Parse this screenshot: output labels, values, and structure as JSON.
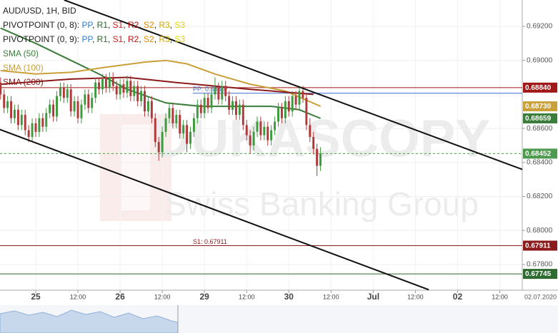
{
  "chart_data": {
    "type": "candlestick",
    "title": "AUD/USD, 1H, BID",
    "up_color": "#3f9a3f",
    "down_color": "#b03a3a",
    "x": [
      -10,
      -9,
      -8,
      -7,
      -6,
      -5,
      -4,
      -3,
      -2,
      -1,
      0,
      1,
      2,
      3,
      4,
      5,
      6,
      7,
      8,
      9,
      10,
      11,
      12,
      13,
      14,
      15,
      16,
      17,
      18,
      19,
      20,
      21,
      22,
      23,
      24,
      25,
      26,
      27,
      28,
      29,
      30,
      31,
      32,
      33,
      34,
      35,
      36,
      37,
      38,
      39,
      40,
      41,
      42,
      43,
      44,
      45,
      46,
      47,
      48,
      49,
      50,
      51,
      52,
      53,
      54,
      55,
      56,
      57,
      58,
      59,
      60,
      61,
      62,
      63,
      64,
      65,
      66,
      67,
      68,
      69,
      70,
      71,
      72,
      73,
      74,
      75,
      76,
      77,
      78,
      79,
      80,
      81
    ],
    "ohlc": [
      [
        0.6887,
        0.689,
        0.6877,
        0.688
      ],
      [
        0.688,
        0.6883,
        0.6869,
        0.6872
      ],
      [
        0.6872,
        0.6879,
        0.6869,
        0.6876
      ],
      [
        0.6876,
        0.6879,
        0.6863,
        0.6866
      ],
      [
        0.6866,
        0.6874,
        0.6863,
        0.6871
      ],
      [
        0.6871,
        0.6874,
        0.6859,
        0.6862
      ],
      [
        0.6862,
        0.6871,
        0.6859,
        0.6868
      ],
      [
        0.6868,
        0.6871,
        0.6856,
        0.6859
      ],
      [
        0.6859,
        0.6862,
        0.6852,
        0.6855
      ],
      [
        0.6855,
        0.6866,
        0.6852,
        0.6863
      ],
      [
        0.6863,
        0.6866,
        0.6855,
        0.6858
      ],
      [
        0.6858,
        0.6869,
        0.6855,
        0.6866
      ],
      [
        0.6866,
        0.6869,
        0.6858,
        0.6861
      ],
      [
        0.6861,
        0.6872,
        0.6858,
        0.6869
      ],
      [
        0.6869,
        0.6877,
        0.6866,
        0.6874
      ],
      [
        0.6874,
        0.6877,
        0.6864,
        0.6867
      ],
      [
        0.6867,
        0.6882,
        0.6864,
        0.6879
      ],
      [
        0.6879,
        0.6887,
        0.6876,
        0.6884
      ],
      [
        0.6884,
        0.6887,
        0.6875,
        0.6878
      ],
      [
        0.6878,
        0.6886,
        0.6875,
        0.6883
      ],
      [
        0.6883,
        0.6886,
        0.6867,
        0.687
      ],
      [
        0.687,
        0.6879,
        0.6867,
        0.6876
      ],
      [
        0.6876,
        0.6879,
        0.6863,
        0.6866
      ],
      [
        0.6866,
        0.6877,
        0.6863,
        0.6874
      ],
      [
        0.6874,
        0.6883,
        0.6871,
        0.688
      ],
      [
        0.688,
        0.6883,
        0.6869,
        0.6872
      ],
      [
        0.6872,
        0.6881,
        0.6869,
        0.6878
      ],
      [
        0.6878,
        0.689,
        0.6875,
        0.6887
      ],
      [
        0.6887,
        0.689,
        0.688,
        0.6883
      ],
      [
        0.6883,
        0.6892,
        0.688,
        0.6889
      ],
      [
        0.6889,
        0.6892,
        0.6881,
        0.6884
      ],
      [
        0.6884,
        0.6893,
        0.6881,
        0.689
      ],
      [
        0.689,
        0.6893,
        0.6882,
        0.6885
      ],
      [
        0.6885,
        0.6888,
        0.6877,
        0.688
      ],
      [
        0.688,
        0.6889,
        0.6877,
        0.6886
      ],
      [
        0.6886,
        0.6889,
        0.6878,
        0.6881
      ],
      [
        0.6881,
        0.6891,
        0.6878,
        0.6888
      ],
      [
        0.6888,
        0.6891,
        0.6876,
        0.6879
      ],
      [
        0.6879,
        0.6888,
        0.6876,
        0.6885
      ],
      [
        0.6885,
        0.6888,
        0.6873,
        0.6876
      ],
      [
        0.6876,
        0.6885,
        0.6873,
        0.6882
      ],
      [
        0.6882,
        0.6885,
        0.6867,
        0.687
      ],
      [
        0.687,
        0.6879,
        0.6867,
        0.6876
      ],
      [
        0.6876,
        0.6879,
        0.6863,
        0.6866
      ],
      [
        0.6866,
        0.6869,
        0.6849,
        0.6852
      ],
      [
        0.6852,
        0.6855,
        0.6841,
        0.6846
      ],
      [
        0.6846,
        0.6861,
        0.6843,
        0.6858
      ],
      [
        0.6858,
        0.6869,
        0.6855,
        0.6866
      ],
      [
        0.6866,
        0.6875,
        0.6863,
        0.6872
      ],
      [
        0.6872,
        0.6875,
        0.686,
        0.6863
      ],
      [
        0.6863,
        0.6871,
        0.686,
        0.6868
      ],
      [
        0.6868,
        0.6871,
        0.6854,
        0.6857
      ],
      [
        0.6857,
        0.6865,
        0.6854,
        0.6862
      ],
      [
        0.6862,
        0.6865,
        0.6846,
        0.6851
      ],
      [
        0.6851,
        0.6861,
        0.6848,
        0.6858
      ],
      [
        0.6858,
        0.6869,
        0.6855,
        0.6866
      ],
      [
        0.6866,
        0.6877,
        0.6863,
        0.6874
      ],
      [
        0.6874,
        0.6877,
        0.6866,
        0.6869
      ],
      [
        0.6869,
        0.6881,
        0.6866,
        0.6878
      ],
      [
        0.6878,
        0.6881,
        0.6869,
        0.6872
      ],
      [
        0.6872,
        0.6883,
        0.6869,
        0.688
      ],
      [
        0.688,
        0.689,
        0.6877,
        0.6884
      ],
      [
        0.6884,
        0.6887,
        0.6874,
        0.6877
      ],
      [
        0.6877,
        0.6888,
        0.6874,
        0.6885
      ],
      [
        0.6885,
        0.6888,
        0.6876,
        0.6879
      ],
      [
        0.6879,
        0.6882,
        0.6868,
        0.6871
      ],
      [
        0.6871,
        0.6879,
        0.6868,
        0.6876
      ],
      [
        0.6876,
        0.6879,
        0.6865,
        0.6868
      ],
      [
        0.6868,
        0.6877,
        0.6865,
        0.6874
      ],
      [
        0.6874,
        0.6877,
        0.6859,
        0.6862
      ],
      [
        0.6862,
        0.6865,
        0.6853,
        0.6856
      ],
      [
        0.6856,
        0.6859,
        0.6845,
        0.685
      ],
      [
        0.685,
        0.6861,
        0.6847,
        0.6858
      ],
      [
        0.6858,
        0.6867,
        0.6855,
        0.6864
      ],
      [
        0.6864,
        0.6867,
        0.6853,
        0.6856
      ],
      [
        0.6856,
        0.6864,
        0.6853,
        0.6861
      ],
      [
        0.6861,
        0.6864,
        0.685,
        0.6853
      ],
      [
        0.6853,
        0.6862,
        0.685,
        0.6859
      ],
      [
        0.6859,
        0.6867,
        0.6856,
        0.6864
      ],
      [
        0.6864,
        0.6875,
        0.6861,
        0.6872
      ],
      [
        0.6872,
        0.6875,
        0.6863,
        0.6866
      ],
      [
        0.6866,
        0.6879,
        0.6863,
        0.6876
      ],
      [
        0.6876,
        0.6879,
        0.6867,
        0.687
      ],
      [
        0.687,
        0.6882,
        0.6867,
        0.6879
      ],
      [
        0.6879,
        0.6882,
        0.6871,
        0.6874
      ],
      [
        0.6874,
        0.6885,
        0.6871,
        0.6882
      ],
      [
        0.6882,
        0.6885,
        0.6875,
        0.6878
      ],
      [
        0.6878,
        0.6881,
        0.6859,
        0.6862
      ],
      [
        0.6862,
        0.6866,
        0.6852,
        0.6855
      ],
      [
        0.6855,
        0.6858,
        0.6845,
        0.6848
      ],
      [
        0.6848,
        0.6851,
        0.6832,
        0.6838
      ],
      [
        0.6838,
        0.6849,
        0.6835,
        0.68452
      ]
    ],
    "series": [
      {
        "name": "SMA (50)",
        "color": "#3a7d3a",
        "x": [
          -10,
          0,
          10,
          18,
          26,
          37,
          47,
          57,
          67,
          75,
          81
        ],
        "values": [
          0.6919,
          0.691,
          0.69,
          0.6892,
          0.6883,
          0.6875,
          0.6873,
          0.6873,
          0.6873,
          0.6871,
          0.68659
        ]
      },
      {
        "name": "SMA (100)",
        "color": "#c9a03a",
        "x": [
          -10,
          0,
          10,
          20,
          31,
          37,
          43,
          51,
          61,
          71,
          81
        ],
        "values": [
          0.6894,
          0.6892,
          0.6893,
          0.6896,
          0.6899,
          0.69,
          0.6898,
          0.6892,
          0.6886,
          0.6882,
          0.6873
        ]
      },
      {
        "name": "SMA (200)",
        "color": "#8b1a1a",
        "x": [
          -10,
          10,
          26,
          40,
          61,
          79
        ],
        "values": [
          0.6886,
          0.6889,
          0.689,
          0.6887,
          0.6883,
          0.688
        ]
      }
    ],
    "pivots": {
      "rows": [
        "PIVOTPOINT (0, 8):",
        "PIVOTPOINT (0, 9):"
      ],
      "separator": ", ",
      "names": [
        {
          "text": "PP",
          "color": "#2f7fd6"
        },
        {
          "text": "R1",
          "color": "#2a6b2a"
        },
        {
          "text": "S1",
          "color": "#d32020"
        },
        {
          "text": "R2",
          "color": "#b01010"
        },
        {
          "text": "S2",
          "color": "#e08a00"
        },
        {
          "text": "R3",
          "color": "#d4a800"
        },
        {
          "text": "S3",
          "color": "#e6d000"
        }
      ]
    },
    "trendlines": [
      {
        "x": [
          8.1,
          138.4
        ],
        "values": [
          0.69355,
          0.68359
        ]
      },
      {
        "x": [
          -10.2,
          111.8
        ],
        "values": [
          0.68594,
          0.67652
        ]
      }
    ],
    "annotations": [
      {
        "label": "PP: 0.68807",
        "value": 0.68807,
        "x": 44.7,
        "color": "#3b6fd0"
      },
      {
        "label": "S1: 0.67911",
        "value": 0.67911,
        "x": 44.7,
        "color": "#8b1a1a"
      }
    ],
    "price_tags": [
      {
        "value": 0.6884,
        "label": "0.68840",
        "color": "#a01818",
        "line": "solid"
      },
      {
        "value": 0.6873,
        "label": "0.68730",
        "color": "#c9a03a",
        "line": "none"
      },
      {
        "value": 0.68659,
        "label": "0.68659",
        "color": "#3a7d3a",
        "line": "none"
      },
      {
        "value": 0.68452,
        "label": "0.68452",
        "color": "#4e9a4e",
        "line": "dashed"
      },
      {
        "value": 0.67911,
        "label": "0.67911",
        "color": "#8b1a1a",
        "line": "solid"
      },
      {
        "value": 0.67745,
        "label": "0.67745",
        "color": "#2e6b2e",
        "line": "solid"
      }
    ],
    "xlim": [
      -10.16,
      138.4
    ],
    "ylim": [
      0.67649,
      0.69355
    ],
    "xticks": [
      {
        "value": 0,
        "label": "25"
      },
      {
        "value": 12,
        "label": "12:00"
      },
      {
        "value": 24,
        "label": "26"
      },
      {
        "value": 36,
        "label": "12:00"
      },
      {
        "value": 48,
        "label": "29"
      },
      {
        "value": 60,
        "label": "12:00"
      },
      {
        "value": 72,
        "label": "30"
      },
      {
        "value": 84,
        "label": "12:00"
      },
      {
        "value": 96,
        "label": "Jul"
      },
      {
        "value": 108,
        "label": "12:00"
      },
      {
        "value": 120,
        "label": "02"
      },
      {
        "value": 132,
        "label": "12:00"
      }
    ],
    "yticks": [
      {
        "value": 0.692,
        "label": "0.69200"
      },
      {
        "value": 0.69,
        "label": "0.69000"
      },
      {
        "value": 0.686,
        "label": "0.68600"
      },
      {
        "value": 0.684,
        "label": "0.68400"
      },
      {
        "value": 0.682,
        "label": "0.68200"
      },
      {
        "value": 0.68,
        "label": "0.68000"
      },
      {
        "value": 0.678,
        "label": "0.67800"
      }
    ],
    "grid": true,
    "date_label": "02.07.2020",
    "watermark": [
      "DUKASCOPY",
      "Swiss Banking Group"
    ]
  }
}
